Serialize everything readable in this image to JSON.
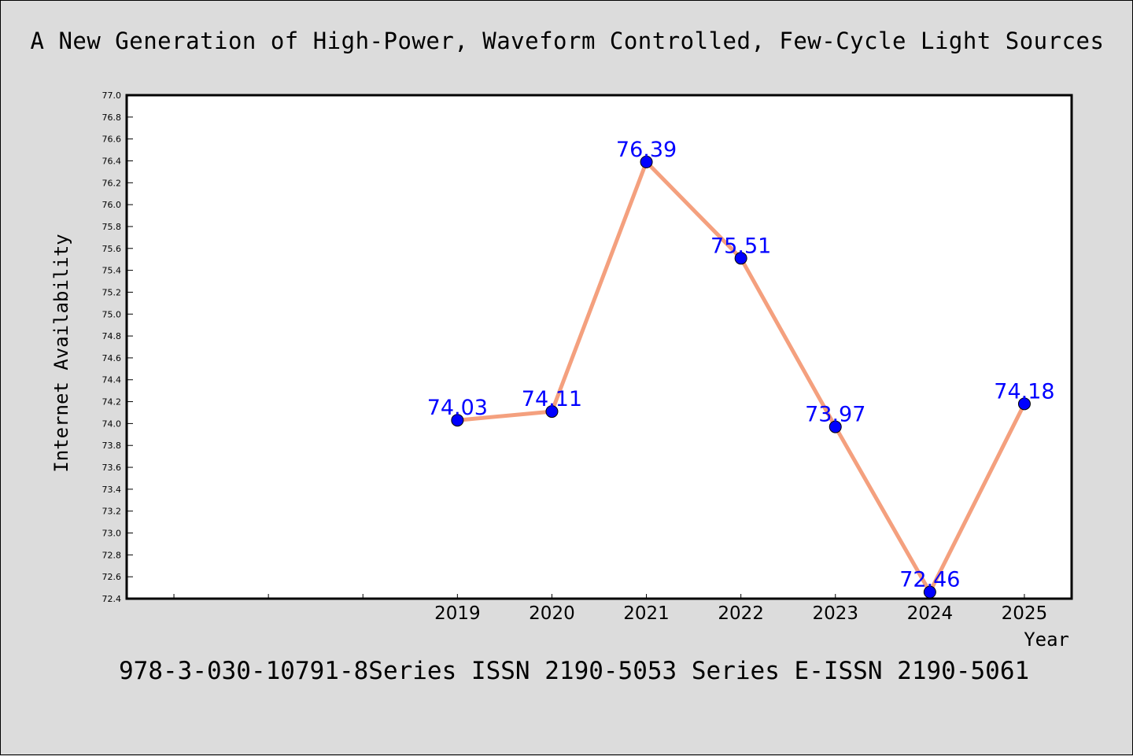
{
  "header": {
    "title": "A New Generation of High-Power, Waveform Controlled, Few-Cycle Light Sources"
  },
  "footer": {
    "text": "978-3-030-10791-8Series ISSN 2190-5053 Series E-ISSN 2190-5061"
  },
  "colors": {
    "background": "#dcdcdc",
    "plot_background": "#ffffff",
    "line": "#f4a07e",
    "marker": "#0000ff",
    "data_label": "#0000ff"
  },
  "chart_data": {
    "type": "line",
    "xlabel": "Year",
    "ylabel": "Internet Availability",
    "x": [
      "2019",
      "2020",
      "2021",
      "2022",
      "2023",
      "2024",
      "2025"
    ],
    "series": [
      {
        "values": [
          74.03,
          74.11,
          76.39,
          75.51,
          73.97,
          72.46,
          74.18
        ]
      }
    ],
    "data_labels": [
      "74.03",
      "74.11",
      "76.39",
      "75.51",
      "73.97",
      "72.46",
      "74.18"
    ],
    "ylim": [
      72.4,
      77.0
    ],
    "ytick_step": 0.2,
    "ytick_labels": [
      "72.4",
      "72.6",
      "72.8",
      "73.0",
      "73.2",
      "73.4",
      "73.6",
      "73.8",
      "74.0",
      "74.2",
      "74.4",
      "74.6",
      "74.8",
      "75.0",
      "75.2",
      "75.4",
      "75.6",
      "75.8",
      "76.0",
      "76.2",
      "76.4",
      "76.6",
      "76.8",
      "77.0"
    ],
    "x_category_slots": 10,
    "x_first_data_slot": 3,
    "grid": false,
    "legend": "none"
  }
}
